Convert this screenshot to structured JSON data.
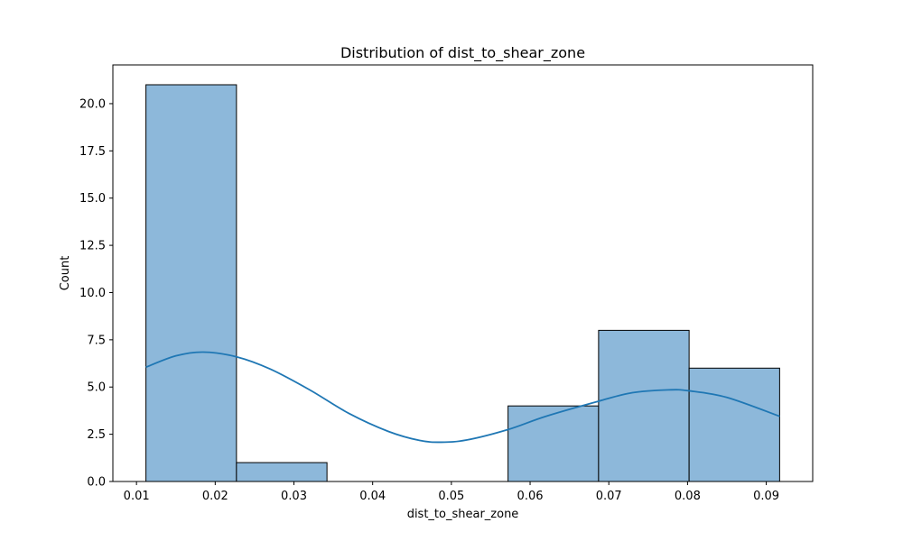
{
  "chart_data": {
    "type": "bar",
    "title": "Distribution of dist_to_shear_zone",
    "xlabel": "dist_to_shear_zone",
    "ylabel": "Count",
    "xlim": [
      0.007,
      0.0959
    ],
    "ylim": [
      0,
      22.05
    ],
    "x_ticks": [
      0.01,
      0.02,
      0.03,
      0.04,
      0.05,
      0.06,
      0.07,
      0.08,
      0.09
    ],
    "x_tick_labels": [
      "0.01",
      "0.02",
      "0.03",
      "0.04",
      "0.05",
      "0.06",
      "0.07",
      "0.08",
      "0.09"
    ],
    "y_ticks": [
      0,
      2.5,
      5,
      7.5,
      10,
      12.5,
      15,
      17.5,
      20
    ],
    "y_tick_labels": [
      "0.0",
      "2.5",
      "5.0",
      "7.5",
      "10.0",
      "12.5",
      "15.0",
      "17.5",
      "20.0"
    ],
    "bins": [
      {
        "start": 0.0112,
        "end": 0.0227,
        "count": 21
      },
      {
        "start": 0.0227,
        "end": 0.0342,
        "count": 1
      },
      {
        "start": 0.0342,
        "end": 0.0457,
        "count": 0
      },
      {
        "start": 0.0457,
        "end": 0.0572,
        "count": 0
      },
      {
        "start": 0.0572,
        "end": 0.0687,
        "count": 4
      },
      {
        "start": 0.0687,
        "end": 0.0802,
        "count": 8
      },
      {
        "start": 0.0802,
        "end": 0.0917,
        "count": 6
      }
    ],
    "kde": {
      "x": [
        0.0112,
        0.015,
        0.0185,
        0.0227,
        0.027,
        0.032,
        0.037,
        0.042,
        0.046,
        0.0487,
        0.052,
        0.0572,
        0.062,
        0.0687,
        0.073,
        0.0776,
        0.0802,
        0.085,
        0.0917
      ],
      "y": [
        6.05,
        6.65,
        6.85,
        6.6,
        5.95,
        4.85,
        3.6,
        2.65,
        2.17,
        2.08,
        2.2,
        2.75,
        3.45,
        4.25,
        4.7,
        4.85,
        4.8,
        4.45,
        3.45
      ]
    },
    "bar_color": "#8db8da",
    "bar_edge_color": "#000000",
    "kde_color": "#1f77b4",
    "grid": false,
    "legend": "none"
  }
}
